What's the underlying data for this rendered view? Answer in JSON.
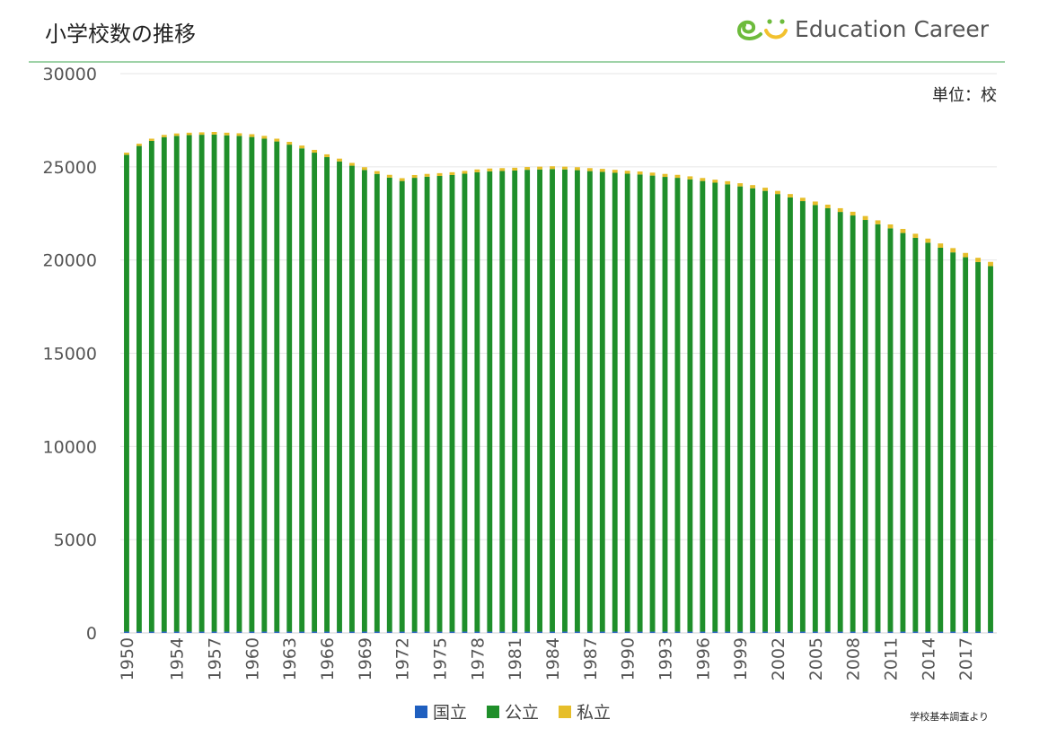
{
  "header": {
    "title": "小学校数の推移",
    "brand_name": "Education Career",
    "brand_colors": {
      "e": "#6dbb3c",
      "smile": "#f2c12e"
    }
  },
  "unit_label": "単位：校",
  "source_note": "学校基本調査より",
  "chart_data": {
    "type": "bar",
    "stacked": true,
    "title": "小学校数の推移",
    "ylim": [
      0,
      30000
    ],
    "yticks": [
      0,
      5000,
      10000,
      15000,
      20000,
      25000,
      30000
    ],
    "xtick_labels": [
      "1950",
      "1954",
      "1957",
      "1960",
      "1963",
      "1966",
      "1969",
      "1972",
      "1975",
      "1978",
      "1981",
      "1984",
      "1987",
      "1990",
      "1993",
      "1996",
      "1999",
      "2002",
      "2005",
      "2008",
      "2011",
      "2014",
      "2017"
    ],
    "grid": true,
    "legend_position": "bottom",
    "categories": [
      "1950",
      "1951",
      "1952",
      "1953",
      "1954",
      "1955",
      "1956",
      "1957",
      "1958",
      "1959",
      "1960",
      "1961",
      "1962",
      "1963",
      "1964",
      "1965",
      "1966",
      "1967",
      "1968",
      "1969",
      "1970",
      "1971",
      "1972",
      "1973",
      "1974",
      "1975",
      "1976",
      "1977",
      "1978",
      "1979",
      "1980",
      "1981",
      "1982",
      "1983",
      "1984",
      "1985",
      "1986",
      "1987",
      "1988",
      "1989",
      "1990",
      "1991",
      "1992",
      "1993",
      "1994",
      "1995",
      "1996",
      "1997",
      "1998",
      "1999",
      "2000",
      "2001",
      "2002",
      "2003",
      "2004",
      "2005",
      "2006",
      "2007",
      "2008",
      "2009",
      "2010",
      "2011",
      "2012",
      "2013",
      "2014",
      "2015",
      "2016",
      "2017",
      "2018",
      "2019"
    ],
    "series": [
      {
        "name": "国立",
        "color": "#1f5fbf",
        "values": [
          70,
          70,
          70,
          70,
          70,
          70,
          70,
          70,
          70,
          70,
          70,
          70,
          70,
          70,
          70,
          70,
          70,
          70,
          70,
          70,
          70,
          70,
          70,
          70,
          70,
          70,
          70,
          70,
          70,
          70,
          70,
          70,
          70,
          70,
          70,
          70,
          70,
          70,
          70,
          70,
          70,
          70,
          70,
          70,
          70,
          70,
          70,
          70,
          70,
          70,
          70,
          70,
          70,
          70,
          70,
          70,
          70,
          70,
          70,
          70,
          70,
          70,
          70,
          70,
          70,
          70,
          70,
          70,
          70,
          70
        ]
      },
      {
        "name": "公立",
        "color": "#1f8f2a",
        "values": [
          25570,
          26050,
          26320,
          26520,
          26590,
          26630,
          26650,
          26660,
          26620,
          26590,
          26530,
          26440,
          26290,
          26120,
          25920,
          25690,
          25450,
          25220,
          24990,
          24760,
          24550,
          24350,
          24170,
          24340,
          24400,
          24440,
          24490,
          24560,
          24640,
          24690,
          24710,
          24730,
          24770,
          24790,
          24810,
          24790,
          24750,
          24700,
          24660,
          24610,
          24560,
          24520,
          24460,
          24390,
          24340,
          24260,
          24170,
          24080,
          23990,
          23880,
          23780,
          23640,
          23470,
          23290,
          23090,
          22880,
          22710,
          22510,
          22320,
          22080,
          21850,
          21630,
          21380,
          21120,
          20860,
          20590,
          20340,
          20080,
          19820,
          19600
        ]
      },
      {
        "name": "私立",
        "color": "#e6be2a",
        "values": [
          120,
          120,
          120,
          120,
          130,
          130,
          130,
          140,
          140,
          140,
          150,
          150,
          150,
          150,
          150,
          150,
          150,
          150,
          150,
          150,
          150,
          150,
          150,
          150,
          150,
          150,
          150,
          150,
          150,
          150,
          150,
          150,
          150,
          150,
          150,
          150,
          160,
          160,
          160,
          160,
          160,
          160,
          160,
          160,
          160,
          160,
          160,
          160,
          170,
          170,
          170,
          170,
          170,
          180,
          180,
          190,
          190,
          200,
          200,
          210,
          210,
          210,
          220,
          220,
          220,
          230,
          230,
          230,
          230,
          230
        ]
      }
    ]
  }
}
